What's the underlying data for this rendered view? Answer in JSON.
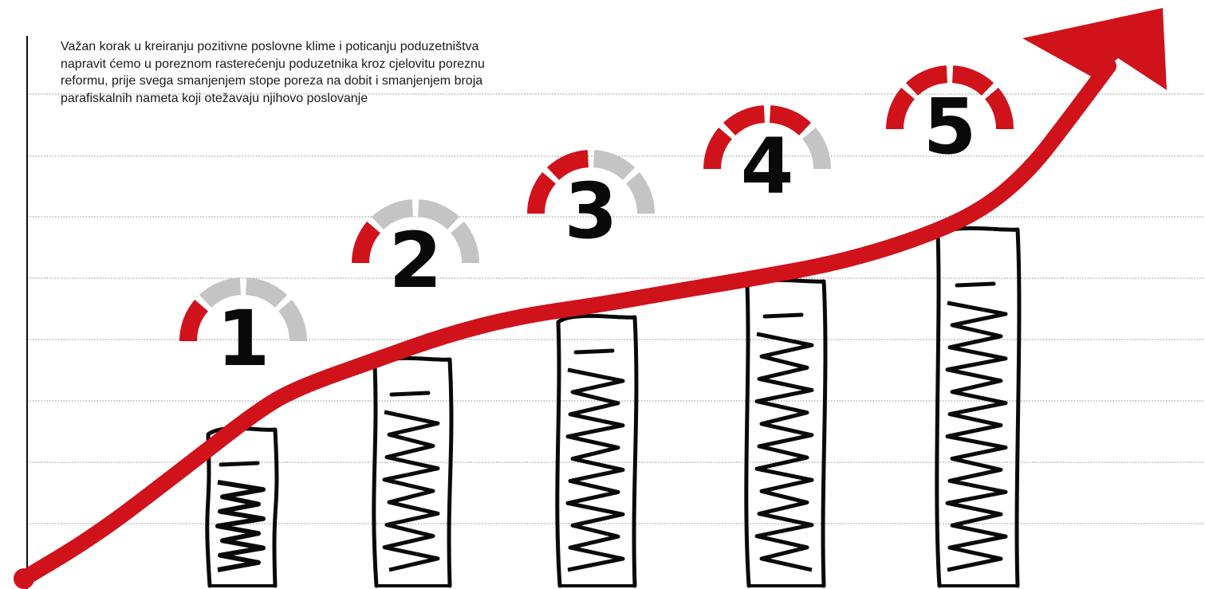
{
  "intro_text": "Važan korak u kreiranju pozitivne poslovne klime i poticanju poduzetništva napravit ćemo u poreznom rasterećenju poduzetnika kroz cjelovitu poreznu reformu, prije svega smanjenjem stope poreza na dobit i smanjenjem broja parafiskalnih nameta koji otežavaju njihovo poslovanje",
  "colors": {
    "accent_red": "#d0121b",
    "gauge_gray": "#c4c4c4",
    "ink": "#0a0a0a",
    "gridline": "#888888"
  },
  "steps": [
    {
      "label": "1",
      "level": 1,
      "segments": 4
    },
    {
      "label": "2",
      "level": 1,
      "segments": 4
    },
    {
      "label": "3",
      "level": 2,
      "segments": 4
    },
    {
      "label": "4",
      "level": 3,
      "segments": 4
    },
    {
      "label": "5",
      "level": 4,
      "segments": 4
    }
  ],
  "icons": [
    "gauge-icon",
    "scribbled-bar-icon",
    "rising-arrow-icon"
  ]
}
